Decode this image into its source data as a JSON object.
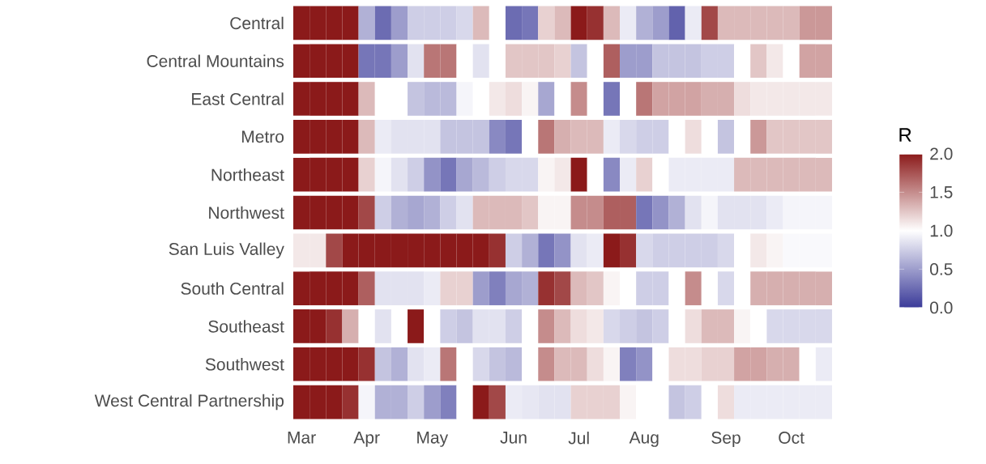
{
  "chart_data": {
    "type": "heatmap",
    "categories": [
      "Mar",
      null,
      null,
      null,
      "Apr",
      null,
      null,
      null,
      "May",
      null,
      null,
      null,
      null,
      "Jun",
      null,
      null,
      null,
      "Jul",
      null,
      null,
      null,
      "Aug",
      null,
      null,
      null,
      null,
      "Sep",
      null,
      null,
      null,
      "Oct",
      null,
      null
    ],
    "y_categories": [
      "Central",
      "Central Mountains",
      "East Central",
      "Metro",
      "Northeast",
      "Northwest",
      "San Luis Valley",
      "South Central",
      "Southeast",
      "Southwest",
      "West Central Partnership"
    ],
    "cells": [
      [
        2.0,
        2.0,
        2.0,
        2.0,
        0.6,
        0.25,
        0.5,
        0.75,
        0.75,
        0.75,
        0.8,
        1.3,
        1.0,
        0.25,
        0.3,
        1.2,
        1.3,
        2.0,
        1.9,
        1.3,
        0.9,
        0.6,
        0.5,
        0.2,
        0.9,
        1.8,
        1.3,
        1.3,
        1.3,
        1.3,
        1.3,
        1.45,
        1.45
      ],
      [
        2.0,
        2.0,
        2.0,
        2.0,
        0.3,
        0.3,
        0.5,
        0.85,
        1.6,
        1.6,
        1.0,
        0.85,
        1.0,
        1.25,
        1.25,
        1.25,
        1.2,
        0.7,
        1.0,
        1.7,
        0.5,
        0.5,
        0.7,
        0.7,
        0.7,
        0.75,
        0.75,
        1.0,
        1.25,
        1.1,
        1.0,
        1.4,
        1.4
      ],
      [
        2.0,
        2.0,
        2.0,
        2.0,
        1.3,
        1.0,
        1.0,
        0.7,
        0.65,
        0.65,
        0.95,
        1.0,
        1.1,
        1.15,
        1.05,
        0.55,
        1.0,
        1.5,
        1.0,
        0.3,
        1.0,
        1.6,
        1.4,
        1.4,
        1.4,
        1.35,
        1.35,
        1.15,
        1.1,
        1.1,
        1.1,
        1.1,
        1.1
      ],
      [
        2.0,
        2.0,
        2.0,
        2.0,
        1.3,
        0.9,
        0.85,
        0.85,
        0.85,
        0.7,
        0.7,
        0.7,
        0.4,
        0.3,
        1.0,
        1.6,
        1.35,
        1.3,
        1.3,
        0.9,
        0.8,
        0.75,
        0.75,
        1.0,
        1.15,
        1.0,
        0.7,
        1.0,
        1.45,
        1.25,
        1.25,
        1.25,
        1.25
      ],
      [
        2.0,
        2.0,
        2.0,
        2.0,
        1.2,
        0.95,
        0.85,
        0.75,
        0.45,
        0.3,
        0.55,
        0.65,
        0.75,
        0.8,
        0.8,
        1.05,
        1.1,
        2.0,
        1.0,
        0.4,
        0.9,
        1.2,
        1.0,
        0.9,
        0.9,
        0.9,
        0.9,
        1.3,
        1.3,
        1.3,
        1.3,
        1.3,
        1.3
      ],
      [
        2.0,
        2.0,
        2.0,
        2.0,
        1.8,
        0.75,
        0.6,
        0.55,
        0.6,
        0.75,
        0.85,
        1.3,
        1.3,
        1.3,
        1.25,
        1.05,
        1.05,
        1.5,
        1.5,
        1.7,
        1.7,
        0.3,
        0.45,
        0.6,
        0.85,
        0.95,
        0.85,
        0.85,
        0.85,
        0.9,
        0.95,
        0.95,
        0.95
      ],
      [
        1.1,
        1.1,
        1.8,
        2.0,
        2.0,
        2.0,
        2.0,
        2.0,
        2.0,
        2.0,
        2.0,
        2.0,
        1.9,
        0.75,
        0.6,
        0.3,
        0.45,
        0.85,
        0.9,
        2.0,
        1.9,
        0.8,
        0.75,
        0.75,
        0.75,
        0.75,
        0.8,
        1.0,
        1.1,
        1.05,
        0.97,
        0.97,
        0.97
      ],
      [
        2.0,
        2.0,
        2.0,
        2.0,
        1.7,
        0.85,
        0.85,
        0.85,
        0.9,
        1.2,
        1.2,
        0.5,
        0.35,
        0.55,
        0.6,
        1.9,
        1.8,
        1.3,
        1.25,
        1.05,
        1.0,
        0.75,
        0.75,
        1.0,
        1.5,
        1.0,
        0.8,
        1.0,
        1.35,
        1.35,
        1.35,
        1.35,
        1.35
      ],
      [
        2.0,
        2.0,
        1.9,
        1.35,
        1.0,
        0.85,
        1.0,
        2.0,
        1.0,
        0.75,
        0.7,
        0.85,
        0.85,
        0.75,
        1.0,
        1.5,
        1.3,
        1.15,
        1.1,
        0.8,
        0.75,
        0.7,
        0.75,
        1.0,
        1.15,
        1.3,
        1.3,
        1.05,
        1.0,
        0.8,
        0.8,
        0.8,
        0.8
      ],
      [
        2.0,
        2.0,
        2.0,
        2.0,
        1.9,
        0.7,
        0.6,
        0.85,
        0.9,
        1.6,
        1.0,
        0.8,
        0.7,
        0.65,
        1.0,
        1.5,
        1.3,
        1.3,
        1.15,
        1.05,
        0.35,
        0.45,
        1.0,
        1.15,
        1.15,
        1.2,
        1.2,
        1.4,
        1.4,
        1.35,
        1.35,
        1.0,
        0.9
      ],
      [
        2.0,
        2.0,
        2.0,
        1.9,
        0.95,
        0.6,
        0.6,
        0.75,
        0.5,
        0.35,
        1.0,
        2.0,
        1.8,
        0.9,
        0.88,
        0.85,
        0.85,
        1.2,
        1.2,
        1.2,
        1.05,
        1.0,
        1.0,
        0.7,
        0.75,
        1.0,
        1.15,
        0.9,
        0.9,
        0.9,
        0.9,
        0.9,
        0.9
      ]
    ],
    "clim": [
      0,
      2
    ],
    "cticks": [
      {
        "value": 0,
        "label": "0.0"
      },
      {
        "value": 0.5,
        "label": "0.5"
      },
      {
        "value": 1,
        "label": "1.0"
      },
      {
        "value": 1.5,
        "label": "1.5"
      },
      {
        "value": 2,
        "label": "2.0"
      }
    ],
    "clabel": "R"
  }
}
